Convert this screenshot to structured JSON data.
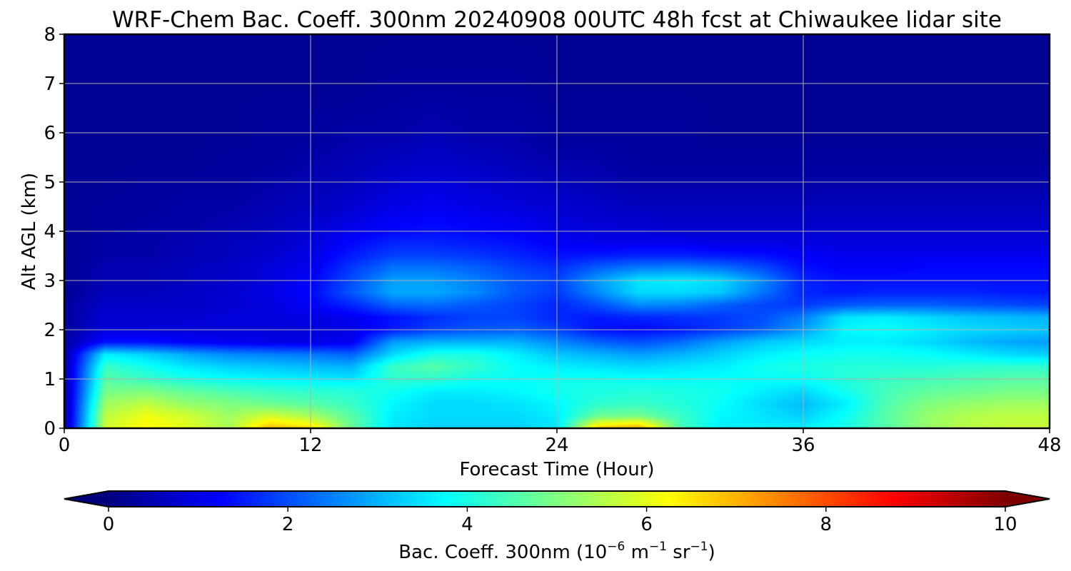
{
  "chart_data": {
    "type": "heatmap",
    "title": "WRF-Chem Bac. Coeff. 300nm  20240908 00UTC 48h fcst at Chiwaukee lidar site",
    "xlabel": "Forecast Time (Hour)",
    "ylabel": "Alt AGL (km)",
    "xlim": [
      0,
      48
    ],
    "ylim": [
      0,
      8
    ],
    "x_ticks": [
      "0",
      "12",
      "24",
      "36",
      "48"
    ],
    "y_ticks": [
      "0",
      "1",
      "2",
      "3",
      "4",
      "5",
      "6",
      "7",
      "8"
    ],
    "grid": true,
    "colormap": "jet",
    "colorbar": {
      "orientation": "horizontal",
      "placement": "bottom",
      "range": [
        0,
        10
      ],
      "extend": "both",
      "ticks": [
        "0",
        "2",
        "4",
        "6",
        "8",
        "10"
      ],
      "label_main": "Bac. Coeff. 300nm  (10",
      "label_exp1": "−6",
      "label_mid": " m",
      "label_exp2": "−1",
      "label_mid2": " sr",
      "label_exp3": "−1",
      "label_end": ")"
    },
    "forecast_hours": [
      0,
      2,
      4,
      6,
      8,
      10,
      12,
      14,
      16,
      18,
      20,
      22,
      24,
      26,
      28,
      30,
      32,
      34,
      36,
      38,
      40,
      42,
      44,
      46,
      48
    ],
    "altitudes_km": [
      0.0,
      0.25,
      0.5,
      0.75,
      1.0,
      1.25,
      1.5,
      1.75,
      2.0,
      2.25,
      2.5,
      2.75,
      3.0,
      3.25,
      3.5,
      3.75,
      4.0,
      4.5,
      5.0,
      5.5,
      6.0,
      7.0,
      8.0
    ],
    "values": [
      [
        0.3,
        5.8,
        6.3,
        6.0,
        5.4,
        7.0,
        6.6,
        4.8,
        3.5,
        3.3,
        3.3,
        3.3,
        3.5,
        6.8,
        7.2,
        4.5,
        3.6,
        3.6,
        3.6,
        4.0,
        4.6,
        5.2,
        5.6,
        5.7,
        5.7
      ],
      [
        0.3,
        5.6,
        6.1,
        5.8,
        5.3,
        5.8,
        5.4,
        4.6,
        3.6,
        3.4,
        3.4,
        3.4,
        3.6,
        4.8,
        4.9,
        4.3,
        3.7,
        3.5,
        3.3,
        3.8,
        4.6,
        5.2,
        5.5,
        5.6,
        5.6
      ],
      [
        0.3,
        5.3,
        5.6,
        5.2,
        5.0,
        4.8,
        4.6,
        4.3,
        3.7,
        3.4,
        3.4,
        3.5,
        3.7,
        4.2,
        4.3,
        4.1,
        3.8,
        3.4,
        3.1,
        3.6,
        4.5,
        5.0,
        5.2,
        5.3,
        5.3
      ],
      [
        0.3,
        4.9,
        5.0,
        4.7,
        4.5,
        4.3,
        4.2,
        4.1,
        3.9,
        3.6,
        3.6,
        3.7,
        3.9,
        4.0,
        4.1,
        4.0,
        3.9,
        3.6,
        3.4,
        3.9,
        4.4,
        4.7,
        4.8,
        4.9,
        4.9
      ],
      [
        0.3,
        4.6,
        4.3,
        4.0,
        3.8,
        3.7,
        3.6,
        3.5,
        4.2,
        4.2,
        3.9,
        3.8,
        3.9,
        3.9,
        3.8,
        3.8,
        3.8,
        3.8,
        3.8,
        4.1,
        4.3,
        4.4,
        4.5,
        4.6,
        4.6
      ],
      [
        0.3,
        4.3,
        3.9,
        3.5,
        3.3,
        3.2,
        3.1,
        3.0,
        4.3,
        4.6,
        4.2,
        3.8,
        3.6,
        3.5,
        3.4,
        3.5,
        3.6,
        3.9,
        4.0,
        4.1,
        4.1,
        4.1,
        4.2,
        4.2,
        4.2
      ],
      [
        0.3,
        3.6,
        3.3,
        2.9,
        2.6,
        2.5,
        2.4,
        2.2,
        3.4,
        4.0,
        4.0,
        3.6,
        3.2,
        3.0,
        2.8,
        3.0,
        3.3,
        3.6,
        3.8,
        3.9,
        3.9,
        3.8,
        3.6,
        3.4,
        3.3
      ],
      [
        0.3,
        1.4,
        1.4,
        1.2,
        1.1,
        1.0,
        1.0,
        1.1,
        2.8,
        3.0,
        3.0,
        3.0,
        2.6,
        2.2,
        2.0,
        2.3,
        2.8,
        3.2,
        3.4,
        3.6,
        3.6,
        3.4,
        3.1,
        2.9,
        2.8
      ],
      [
        0.3,
        0.9,
        0.9,
        0.9,
        0.9,
        0.9,
        0.9,
        1.0,
        1.5,
        1.9,
        2.1,
        2.2,
        1.9,
        1.4,
        1.3,
        1.5,
        1.8,
        2.2,
        2.8,
        3.7,
        3.8,
        3.6,
        3.4,
        3.3,
        3.2
      ],
      [
        0.3,
        0.8,
        0.8,
        0.8,
        0.9,
        0.9,
        1.0,
        1.1,
        1.4,
        1.7,
        1.9,
        1.9,
        1.6,
        1.5,
        1.6,
        1.7,
        1.8,
        2.0,
        2.5,
        3.5,
        3.6,
        3.4,
        3.2,
        3.1,
        3.0
      ],
      [
        0.3,
        0.7,
        0.7,
        0.7,
        0.8,
        0.9,
        1.2,
        1.6,
        2.2,
        2.3,
        2.1,
        1.9,
        1.6,
        2.0,
        2.6,
        2.5,
        2.2,
        1.9,
        1.8,
        2.1,
        2.2,
        2.2,
        2.1,
        2.0,
        1.9
      ],
      [
        0.2,
        0.6,
        0.6,
        0.7,
        0.8,
        1.0,
        1.3,
        2.1,
        2.9,
        2.9,
        2.6,
        2.1,
        1.8,
        2.6,
        3.4,
        3.4,
        3.2,
        2.4,
        1.6,
        1.5,
        1.6,
        1.6,
        1.6,
        1.5,
        1.5
      ],
      [
        0.2,
        0.5,
        0.5,
        0.6,
        0.7,
        0.9,
        1.2,
        2.0,
        2.8,
        2.8,
        2.5,
        2.1,
        1.9,
        2.8,
        3.5,
        3.6,
        3.4,
        2.6,
        1.6,
        1.4,
        1.4,
        1.4,
        1.4,
        1.4,
        1.4
      ],
      [
        0.2,
        0.5,
        0.5,
        0.6,
        0.7,
        0.9,
        1.1,
        1.8,
        2.4,
        2.4,
        2.2,
        1.9,
        1.7,
        2.2,
        2.5,
        2.6,
        2.4,
        2.0,
        1.4,
        1.2,
        1.2,
        1.3,
        1.3,
        1.3,
        1.3
      ],
      [
        0.2,
        0.4,
        0.4,
        0.5,
        0.6,
        0.8,
        1.0,
        1.5,
        1.9,
        1.9,
        1.8,
        1.6,
        1.4,
        1.5,
        1.6,
        1.6,
        1.5,
        1.4,
        1.2,
        1.1,
        1.1,
        1.1,
        1.1,
        1.1,
        1.1
      ],
      [
        0.2,
        0.4,
        0.4,
        0.5,
        0.6,
        0.7,
        0.9,
        1.3,
        1.6,
        1.6,
        1.5,
        1.4,
        1.2,
        1.1,
        1.1,
        1.1,
        1.0,
        1.0,
        1.0,
        0.9,
        0.9,
        0.9,
        0.9,
        0.9,
        0.9
      ],
      [
        0.2,
        0.3,
        0.4,
        0.4,
        0.5,
        0.6,
        0.8,
        1.1,
        1.3,
        1.4,
        1.3,
        1.2,
        1.0,
        0.9,
        0.9,
        0.8,
        0.8,
        0.8,
        0.8,
        0.8,
        0.8,
        0.8,
        0.8,
        0.8,
        0.8
      ],
      [
        0.2,
        0.3,
        0.3,
        0.4,
        0.4,
        0.5,
        0.6,
        0.8,
        1.0,
        1.1,
        1.0,
        0.9,
        0.8,
        0.7,
        0.6,
        0.6,
        0.6,
        0.6,
        0.6,
        0.6,
        0.6,
        0.6,
        0.6,
        0.6,
        0.6
      ],
      [
        0.2,
        0.2,
        0.3,
        0.3,
        0.3,
        0.4,
        0.5,
        0.6,
        0.8,
        0.9,
        0.8,
        0.7,
        0.6,
        0.5,
        0.4,
        0.4,
        0.4,
        0.4,
        0.4,
        0.4,
        0.4,
        0.4,
        0.4,
        0.4,
        0.4
      ],
      [
        0.2,
        0.2,
        0.2,
        0.2,
        0.3,
        0.3,
        0.4,
        0.5,
        0.6,
        0.7,
        0.6,
        0.5,
        0.4,
        0.4,
        0.3,
        0.3,
        0.3,
        0.3,
        0.3,
        0.3,
        0.3,
        0.3,
        0.3,
        0.3,
        0.3
      ],
      [
        0.2,
        0.2,
        0.2,
        0.2,
        0.2,
        0.3,
        0.3,
        0.4,
        0.4,
        0.5,
        0.4,
        0.4,
        0.3,
        0.3,
        0.3,
        0.3,
        0.2,
        0.2,
        0.2,
        0.2,
        0.2,
        0.2,
        0.2,
        0.2,
        0.2
      ],
      [
        0.2,
        0.2,
        0.2,
        0.2,
        0.2,
        0.2,
        0.2,
        0.2,
        0.3,
        0.3,
        0.3,
        0.3,
        0.2,
        0.2,
        0.2,
        0.2,
        0.2,
        0.2,
        0.2,
        0.2,
        0.2,
        0.2,
        0.2,
        0.2,
        0.2
      ],
      [
        0.2,
        0.2,
        0.2,
        0.2,
        0.2,
        0.2,
        0.2,
        0.2,
        0.2,
        0.2,
        0.2,
        0.2,
        0.2,
        0.2,
        0.2,
        0.2,
        0.2,
        0.2,
        0.2,
        0.2,
        0.2,
        0.2,
        0.2,
        0.2,
        0.2
      ]
    ]
  }
}
